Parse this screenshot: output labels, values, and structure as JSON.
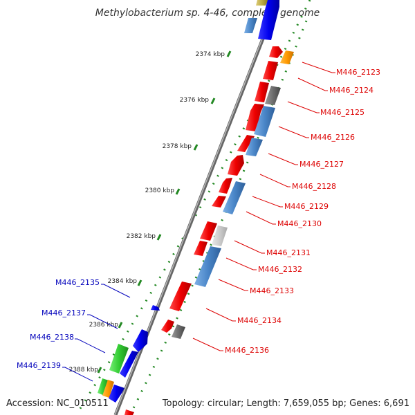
{
  "title": "Methylobacterium sp. 4-46, complete genome",
  "accession": "Accession: NC_010511",
  "topology": "Topology: circular; Length: 7,659,055 bp; Genes: 6,691",
  "colors": {
    "red": "#ee1111",
    "blue": "#1111ee",
    "steelblue": "#4a86c8",
    "gray": "#6e6e6e",
    "lightgray": "#cccccc",
    "orange": "#ff9900",
    "green": "#33cc33",
    "olive": "#bbaa44",
    "tick": "#228822",
    "backbone": "#888888",
    "label_red": "#dd0000",
    "label_blue": "#0000bb"
  },
  "ticks": [
    "2374 kbp",
    "2376 kbp",
    "2378 kbp",
    "2380 kbp",
    "2382 kbp",
    "2384 kbp",
    "2386 kbp",
    "2388 kbp"
  ],
  "labels_right": [
    "M446_2123",
    "M446_2124",
    "M446_2125",
    "M446_2126",
    "M446_2127",
    "M446_2128",
    "M446_2129",
    "M446_2130",
    "M446_2131",
    "M446_2132",
    "M446_2133",
    "M446_2134",
    "M446_2136"
  ],
  "labels_left": [
    "M446_2135",
    "M446_2137",
    "M446_2138",
    "M446_2139"
  ]
}
